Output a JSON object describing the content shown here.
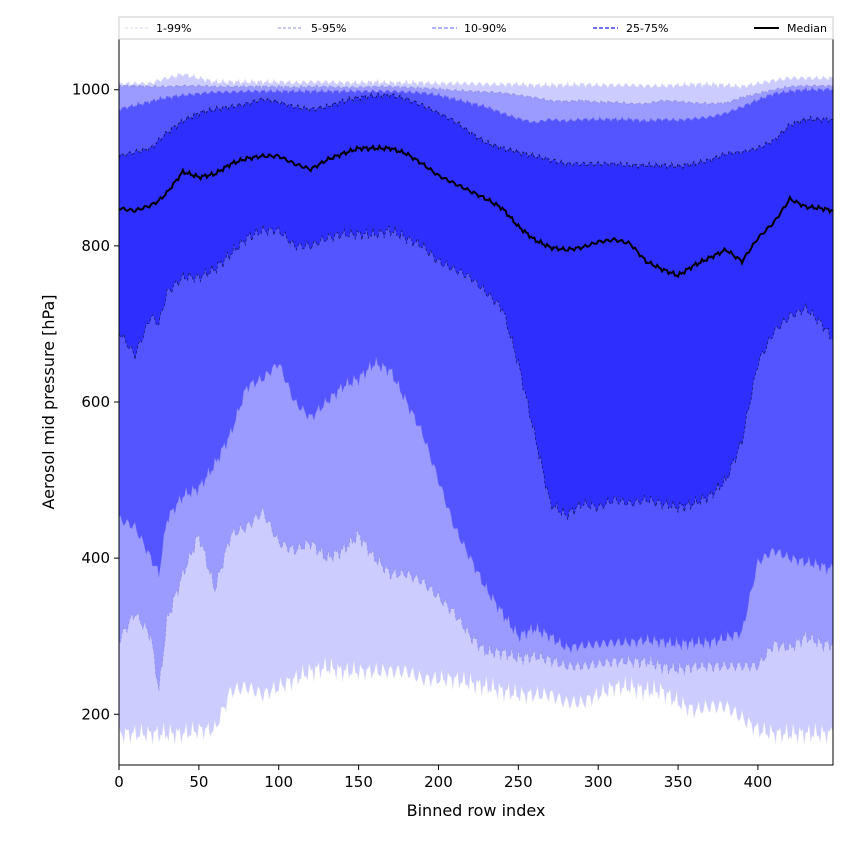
{
  "chart_data": {
    "type": "area",
    "xlabel": "Binned row index",
    "ylabel": "Aerosol mid pressure [hPa]",
    "xlim": [
      0,
      447
    ],
    "ylim": [
      135,
      1065
    ],
    "xticks": [
      0,
      50,
      100,
      150,
      200,
      250,
      300,
      350,
      400
    ],
    "yticks": [
      200,
      400,
      600,
      800,
      1000
    ],
    "grid": false,
    "legend_position": "top",
    "x": [
      0,
      10,
      20,
      25,
      30,
      40,
      50,
      60,
      70,
      80,
      90,
      100,
      110,
      120,
      130,
      140,
      150,
      160,
      170,
      180,
      190,
      200,
      210,
      220,
      230,
      240,
      250,
      260,
      270,
      280,
      290,
      300,
      310,
      320,
      330,
      340,
      350,
      360,
      370,
      380,
      390,
      400,
      410,
      420,
      430,
      440,
      447
    ],
    "bands": [
      {
        "name": "1-99%",
        "color": "#ccccff",
        "line": "#e8e8f0",
        "lower": [
          175,
          175,
          175,
          175,
          175,
          175,
          180,
          180,
          230,
          235,
          225,
          235,
          245,
          255,
          260,
          255,
          255,
          255,
          255,
          255,
          245,
          245,
          245,
          240,
          235,
          230,
          225,
          225,
          225,
          215,
          215,
          225,
          235,
          235,
          230,
          230,
          215,
          205,
          210,
          210,
          195,
          180,
          175,
          175,
          175,
          175,
          175
        ],
        "upper": [
          1007,
          1008,
          1008,
          1012,
          1015,
          1020,
          1015,
          1010,
          1010,
          1010,
          1010,
          1010,
          1009,
          1010,
          1010,
          1009,
          1009,
          1010,
          1009,
          1009,
          1009,
          1008,
          1008,
          1008,
          1007,
          1007,
          1007,
          1006,
          1006,
          1006,
          1007,
          1006,
          1006,
          1006,
          1005,
          1005,
          1006,
          1007,
          1007,
          1006,
          1004,
          1008,
          1012,
          1015,
          1015,
          1015,
          1015
        ]
      },
      {
        "name": "5-95%",
        "color": "#9a9aff",
        "line": "#9090e0",
        "lower": [
          295,
          330,
          300,
          230,
          320,
          380,
          430,
          360,
          430,
          440,
          460,
          420,
          410,
          420,
          400,
          410,
          430,
          400,
          380,
          380,
          370,
          350,
          330,
          300,
          280,
          280,
          272,
          275,
          270,
          262,
          262,
          265,
          268,
          268,
          268,
          262,
          258,
          262,
          262,
          262,
          262,
          262,
          290,
          285,
          300,
          290,
          290
        ],
        "upper": [
          1005,
          1005,
          1004,
          1004,
          1004,
          1005,
          1005,
          1004,
          1004,
          1004,
          1004,
          1004,
          1003,
          1004,
          1004,
          1003,
          1003,
          1004,
          1004,
          1003,
          1002,
          1001,
          999,
          998,
          997,
          996,
          993,
          990,
          986,
          985,
          986,
          984,
          984,
          982,
          982,
          986,
          985,
          983,
          982,
          983,
          990,
          995,
          1000,
          1004,
          1005,
          1005,
          1005
        ]
      },
      {
        "name": "10-90%",
        "color": "#5555ff",
        "line": "#7070ff",
        "lower": [
          450,
          440,
          400,
          380,
          450,
          480,
          490,
          520,
          560,
          620,
          630,
          650,
          600,
          580,
          600,
          620,
          630,
          650,
          640,
          600,
          560,
          500,
          440,
          400,
          360,
          330,
          300,
          310,
          300,
          285,
          288,
          290,
          292,
          292,
          295,
          293,
          290,
          292,
          292,
          298,
          305,
          395,
          410,
          400,
          395,
          390,
          385
        ],
        "upper": [
          975,
          980,
          985,
          988,
          990,
          993,
          995,
          997,
          997,
          998,
          998,
          998,
          998,
          998,
          998,
          998,
          998,
          998,
          998,
          997,
          996,
          993,
          988,
          983,
          978,
          970,
          963,
          958,
          962,
          960,
          962,
          962,
          962,
          962,
          960,
          962,
          961,
          963,
          965,
          970,
          978,
          987,
          995,
          998,
          1000,
          1000,
          1001
        ]
      },
      {
        "name": "25-75%",
        "color": "#2e2eff",
        "line": "#101050",
        "lower": [
          690,
          660,
          710,
          700,
          740,
          760,
          760,
          770,
          790,
          810,
          820,
          820,
          800,
          800,
          810,
          815,
          815,
          815,
          820,
          810,
          800,
          780,
          770,
          760,
          740,
          720,
          650,
          560,
          470,
          455,
          470,
          465,
          475,
          470,
          475,
          470,
          465,
          470,
          480,
          500,
          550,
          650,
          690,
          710,
          720,
          700,
          680
        ],
        "upper": [
          915,
          920,
          925,
          935,
          945,
          960,
          970,
          975,
          978,
          982,
          988,
          984,
          978,
          975,
          978,
          985,
          990,
          992,
          993,
          988,
          980,
          970,
          960,
          945,
          932,
          925,
          920,
          915,
          910,
          905,
          905,
          905,
          905,
          903,
          903,
          903,
          902,
          905,
          910,
          918,
          920,
          925,
          935,
          955,
          962,
          962,
          962
        ]
      }
    ],
    "median": {
      "name": "Median",
      "color": "#000000",
      "values": [
        848,
        845,
        852,
        858,
        868,
        895,
        888,
        892,
        905,
        912,
        915,
        915,
        905,
        898,
        910,
        918,
        925,
        925,
        925,
        918,
        905,
        890,
        880,
        870,
        860,
        848,
        825,
        808,
        798,
        795,
        798,
        805,
        808,
        803,
        780,
        770,
        762,
        775,
        785,
        795,
        780,
        810,
        830,
        860,
        850,
        848,
        845
      ]
    },
    "legend": [
      "1-99%",
      "5-95%",
      "10-90%",
      "25-75%",
      "Median"
    ]
  }
}
